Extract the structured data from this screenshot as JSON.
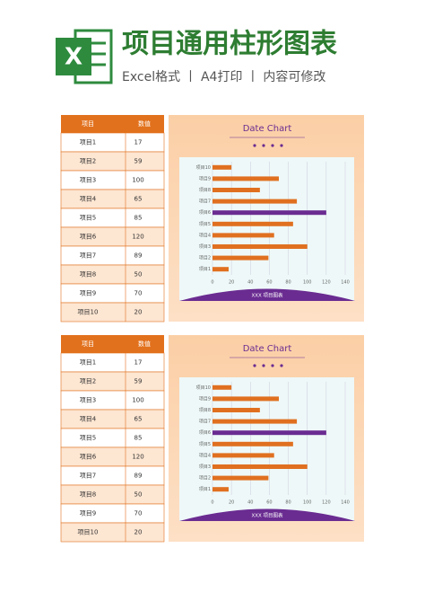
{
  "header": {
    "title": "项目通用柱形图表",
    "subtitle": "Excel格式 丨 A4打印 丨 内容可修改"
  },
  "blocks": [
    {
      "table": {
        "header": [
          "项目",
          "数值"
        ],
        "rows": [
          [
            "项目1",
            "17"
          ],
          [
            "项目2",
            "59"
          ],
          [
            "项目3",
            "100"
          ],
          [
            "项目4",
            "65"
          ],
          [
            "项目5",
            "85"
          ],
          [
            "项目6",
            "120"
          ],
          [
            "项目7",
            "89"
          ],
          [
            "项目8",
            "50"
          ],
          [
            "项目9",
            "70"
          ],
          [
            "项目10",
            "20"
          ]
        ]
      },
      "chart": {
        "type": "bar",
        "title": "Date Chart",
        "categories": [
          "项目1",
          "项目2",
          "项目3",
          "项目4",
          "项目5",
          "项目6",
          "项目7",
          "项目8",
          "项目9",
          "项目10"
        ],
        "values": [
          17,
          59,
          100,
          65,
          85,
          120,
          89,
          50,
          70,
          20
        ],
        "colors": [
          "#e07020",
          "#e07020",
          "#e07020",
          "#e07020",
          "#e07020",
          "#6a2c91",
          "#e07020",
          "#e07020",
          "#e07020",
          "#e07020"
        ],
        "xlim": [
          0,
          140
        ],
        "xticks": [
          0,
          20,
          40,
          60,
          80,
          100,
          120,
          140
        ],
        "grid": true,
        "footer": "XXX 项目图表"
      }
    },
    {
      "table": {
        "header": [
          "项目",
          "数值"
        ],
        "rows": [
          [
            "项目1",
            "17"
          ],
          [
            "项目2",
            "59"
          ],
          [
            "项目3",
            "100"
          ],
          [
            "项目4",
            "65"
          ],
          [
            "项目5",
            "85"
          ],
          [
            "项目6",
            "120"
          ],
          [
            "项目7",
            "89"
          ],
          [
            "项目8",
            "50"
          ],
          [
            "项目9",
            "70"
          ],
          [
            "项目10",
            "20"
          ]
        ]
      },
      "chart": {
        "type": "bar",
        "title": "Date Chart",
        "categories": [
          "项目1",
          "项目2",
          "项目3",
          "项目4",
          "项目5",
          "项目6",
          "项目7",
          "项目8",
          "项目9",
          "项目10"
        ],
        "values": [
          17,
          59,
          100,
          65,
          85,
          120,
          89,
          50,
          70,
          20
        ],
        "colors": [
          "#e07020",
          "#e07020",
          "#e07020",
          "#e07020",
          "#e07020",
          "#6a2c91",
          "#e07020",
          "#e07020",
          "#e07020",
          "#e07020"
        ],
        "xlim": [
          0,
          140
        ],
        "xticks": [
          0,
          20,
          40,
          60,
          80,
          100,
          120,
          140
        ],
        "grid": true,
        "footer": "XXX 项目图表"
      }
    }
  ]
}
